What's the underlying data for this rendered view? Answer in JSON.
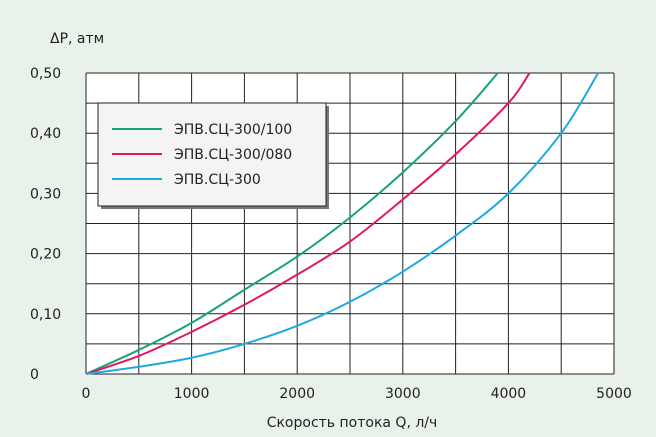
{
  "chart_data": {
    "type": "line",
    "xlabel": "Скорость потока Q, л/ч",
    "ylabel": "ΔP, атм",
    "xlim": [
      0,
      5000
    ],
    "ylim": [
      0,
      0.5
    ],
    "x_ticks": [
      "0",
      "1000",
      "2000",
      "3000",
      "4000",
      "5000"
    ],
    "y_ticks": [
      "0",
      "0,10",
      "0,20",
      "0,30",
      "0,40",
      "0,50"
    ],
    "grid": true,
    "legend_position": "top-left",
    "series": [
      {
        "name": "ЭПВ.СЦ-300/100",
        "color": "#1aa27a",
        "x": [
          0,
          500,
          1000,
          1500,
          2000,
          2500,
          3000,
          3500,
          3900
        ],
        "y": [
          0,
          0.04,
          0.085,
          0.14,
          0.195,
          0.26,
          0.335,
          0.42,
          0.5
        ]
      },
      {
        "name": "ЭПВ.СЦ-300/080",
        "color": "#e0185f",
        "x": [
          0,
          500,
          1000,
          1500,
          2000,
          2500,
          3000,
          3500,
          4000,
          4200
        ],
        "y": [
          0,
          0.03,
          0.07,
          0.115,
          0.165,
          0.22,
          0.29,
          0.365,
          0.45,
          0.5
        ]
      },
      {
        "name": "ЭПВ.СЦ-300",
        "color": "#1fa9e3",
        "x": [
          0,
          500,
          1000,
          1500,
          2000,
          2500,
          3000,
          3500,
          4000,
          4500,
          4850
        ],
        "y": [
          0,
          0.012,
          0.027,
          0.05,
          0.08,
          0.12,
          0.17,
          0.23,
          0.3,
          0.4,
          0.5
        ]
      }
    ]
  }
}
